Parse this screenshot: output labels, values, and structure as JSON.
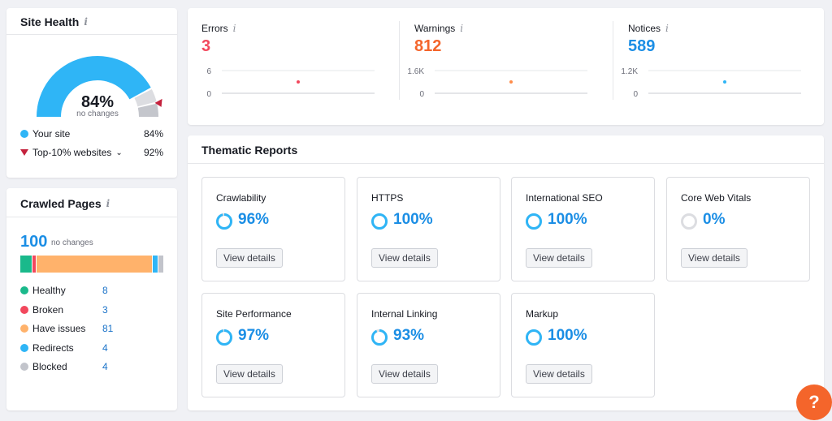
{
  "site_health": {
    "title": "Site Health",
    "info_icon": "i",
    "score": "84%",
    "score_sub": "no changes",
    "score_fraction": 0.84,
    "top10_fraction": 0.92,
    "your_site_label": "Your site",
    "your_site_value": "84%",
    "top10_label": "Top-10% websites",
    "top10_value": "92%",
    "colors": {
      "accent": "#2fb5f6",
      "top10": "#c4223d",
      "track": "#c4c6cc"
    }
  },
  "crawled": {
    "title": "Crawled Pages",
    "info_icon": "i",
    "total": "100",
    "total_sub": "no changes",
    "items": [
      {
        "label": "Healthy",
        "value": "8",
        "count": 8,
        "color": "#1ab98b"
      },
      {
        "label": "Broken",
        "value": "3",
        "count": 3,
        "color": "#f2485d"
      },
      {
        "label": "Have issues",
        "value": "81",
        "count": 81,
        "color": "#ffb26b"
      },
      {
        "label": "Redirects",
        "value": "4",
        "count": 4,
        "color": "#2fb5f6"
      },
      {
        "label": "Blocked",
        "value": "4",
        "count": 4,
        "color": "#c2c4cb"
      }
    ]
  },
  "issues": {
    "info_icon": "i",
    "items": [
      {
        "label": "Errors",
        "value": "3",
        "color": "#f2485d",
        "y_max": "6",
        "y_min": "0",
        "point_fraction": 0.5,
        "point_color": "#f2485d"
      },
      {
        "label": "Warnings",
        "value": "812",
        "color": "#f4652b",
        "y_max": "1.6K",
        "y_min": "0",
        "point_fraction": 0.5,
        "point_color": "#ff8c4a"
      },
      {
        "label": "Notices",
        "value": "589",
        "color": "#1b8ee5",
        "y_max": "1.2K",
        "y_min": "0",
        "point_fraction": 0.5,
        "point_color": "#2fb5f6"
      }
    ]
  },
  "thematic": {
    "title": "Thematic Reports",
    "button_label": "View details",
    "reports": [
      {
        "name": "Crawlability",
        "percent": "96%",
        "fraction": 0.96
      },
      {
        "name": "HTTPS",
        "percent": "100%",
        "fraction": 1.0
      },
      {
        "name": "International SEO",
        "percent": "100%",
        "fraction": 1.0
      },
      {
        "name": "Core Web Vitals",
        "percent": "0%",
        "fraction": 0
      },
      {
        "name": "Site Performance",
        "percent": "97%",
        "fraction": 0.97
      },
      {
        "name": "Internal Linking",
        "percent": "93%",
        "fraction": 0.93
      },
      {
        "name": "Markup",
        "percent": "100%",
        "fraction": 1.0
      }
    ]
  },
  "help": {
    "label": "?",
    "color": "#f4652b"
  }
}
